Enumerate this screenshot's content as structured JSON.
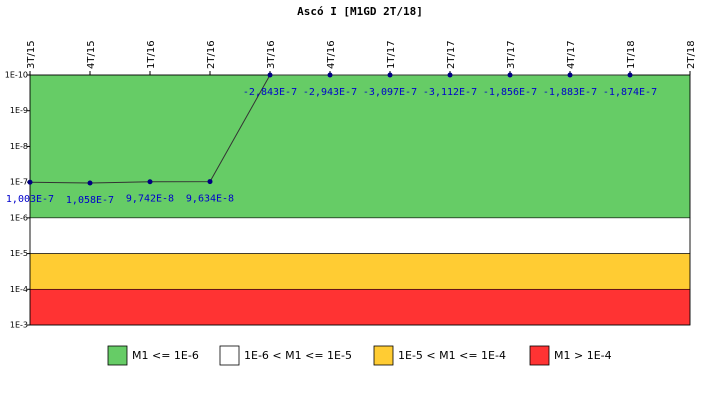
{
  "chart_data": {
    "type": "line",
    "title": "Ascó I [M1GD 2T/18]",
    "categories": [
      "3T/15",
      "4T/15",
      "1T/16",
      "2T/16",
      "3T/16",
      "4T/16",
      "1T/17",
      "2T/17",
      "3T/17",
      "4T/17",
      "1T/18",
      "2T/18"
    ],
    "series": [
      {
        "name": "M1GD",
        "color": "#000080",
        "values": [
          1.003e-07,
          1.058e-07,
          9.742e-08,
          9.634e-08,
          -2.843e-07,
          -2.943e-07,
          -3.097e-07,
          -3.112e-07,
          -1.856e-07,
          -1.883e-07,
          -1.874e-07,
          null
        ],
        "value_labels": [
          "1,003E-7",
          "1,058E-7",
          "9,742E-8",
          "9,634E-8",
          "-2,843E-7",
          "-2,943E-7",
          "-3,097E-7",
          "-3,112E-7",
          "-1,856E-7",
          "-1,883E-7",
          "-1,874E-7",
          null
        ]
      }
    ],
    "log_scale": true,
    "ylim": [
      0.001,
      1e-10
    ],
    "yticks": [
      {
        "value": 1e-10,
        "label": "1E-10"
      },
      {
        "value": 1e-09,
        "label": "1E-9"
      },
      {
        "value": 1e-08,
        "label": "1E-8"
      },
      {
        "value": 1e-07,
        "label": "1E-7"
      },
      {
        "value": 1e-06,
        "label": "1E-6"
      },
      {
        "value": 1e-05,
        "label": "1E-5"
      },
      {
        "value": 0.0001,
        "label": "1E-4"
      },
      {
        "value": 0.001,
        "label": "1E-3"
      }
    ],
    "bands": [
      {
        "name": "M1 <= 1E-6",
        "color": "#66cc66",
        "range": [
          1e-10,
          1e-06
        ]
      },
      {
        "name": "1E-6 < M1 <= 1E-5",
        "color": "#ffffff",
        "range": [
          1e-06,
          1e-05
        ]
      },
      {
        "name": "1E-5 < M1 <= 1E-4",
        "color": "#ffcc33",
        "range": [
          1e-05,
          0.0001
        ]
      },
      {
        "name": "M1 > 1E-4",
        "color": "#ff3333",
        "range": [
          0.0001,
          0.001
        ]
      }
    ]
  }
}
